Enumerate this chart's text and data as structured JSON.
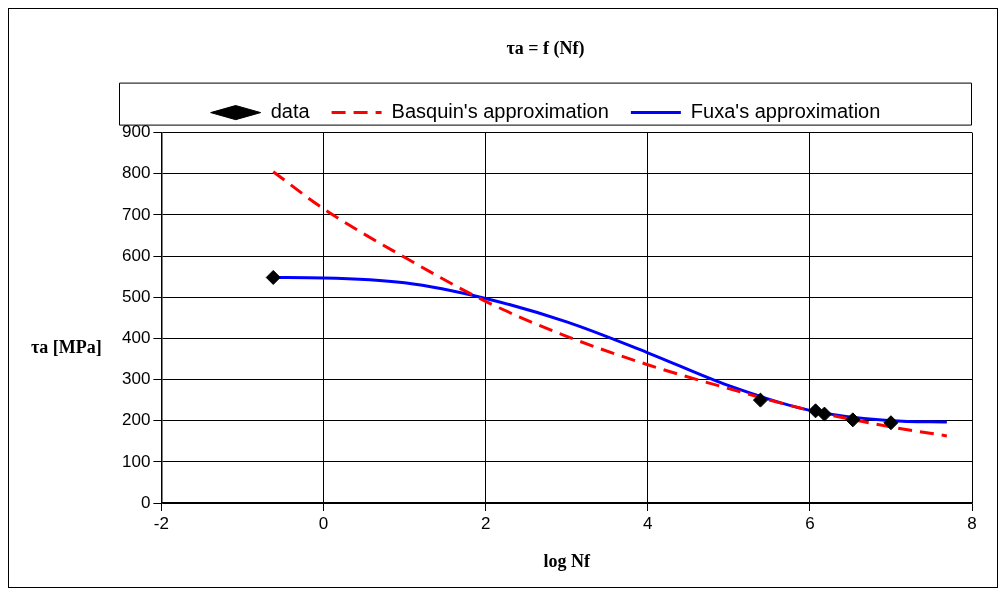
{
  "chart_data": {
    "type": "line",
    "title": "τa = f (Nf)",
    "xlabel": "log Nf",
    "ylabel": "τa [MPa]",
    "xlim": [
      -2,
      8
    ],
    "xticks": [
      -2,
      0,
      2,
      4,
      6,
      8
    ],
    "ylim": [
      0,
      900
    ],
    "yticks": [
      0,
      100,
      200,
      300,
      400,
      500,
      600,
      700,
      800,
      900
    ],
    "grid": true,
    "legend": "top",
    "series": [
      {
        "name": "data",
        "type": "scatter",
        "color": "#000000",
        "marker": "diamond",
        "x": [
          -0.62,
          5.39,
          6.07,
          6.18,
          6.53,
          7.0
        ],
        "values": [
          548,
          250,
          224,
          216,
          202,
          195
        ]
      },
      {
        "name": "Basquin's approximation",
        "type": "line",
        "color": "#ff0000",
        "line_style": "dashed",
        "marker": "none",
        "x": [
          -0.62,
          0,
          1,
          2,
          3,
          4,
          5,
          6,
          7,
          7.69
        ],
        "values": [
          805,
          715,
          597,
          490,
          405,
          336,
          278,
          225,
          185,
          163
        ]
      },
      {
        "name": "Fuxa's approximation",
        "type": "line",
        "color": "#0000ff",
        "line_style": "solid",
        "marker": "none",
        "x": [
          -0.62,
          0,
          1,
          2,
          3,
          4,
          5,
          6,
          7,
          7.69
        ],
        "values": [
          548,
          547,
          535,
          497,
          440,
          365,
          285,
          225,
          200,
          197
        ]
      }
    ]
  }
}
